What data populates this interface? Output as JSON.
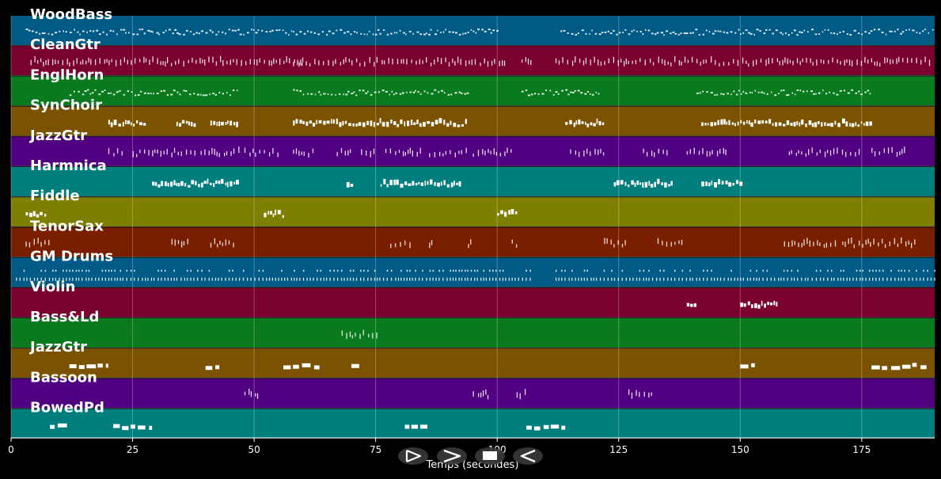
{
  "window": {
    "background": "#000000"
  },
  "chart_data": {
    "type": "piano-roll",
    "xlabel": "Temps (secondes)",
    "xlim": [
      0,
      190
    ],
    "x_ticks": [
      0,
      25,
      50,
      75,
      100,
      125,
      150,
      175
    ],
    "grid": true,
    "tracks": [
      {
        "name": "WoodBass",
        "color": "#005a86",
        "segments": [
          [
            3,
            47
          ],
          [
            47,
            100
          ],
          [
            113,
            190
          ]
        ],
        "style": "dots"
      },
      {
        "name": "CleanGtr",
        "color": "#7a0030",
        "segments": [
          [
            4,
            60
          ],
          [
            58,
            102
          ],
          [
            105,
            107
          ],
          [
            112,
            189
          ]
        ],
        "style": "ticks"
      },
      {
        "name": "EnglHorn",
        "color": "#0a7a1e",
        "segments": [
          [
            12,
            47
          ],
          [
            58,
            94
          ],
          [
            105,
            121
          ],
          [
            141,
            177
          ]
        ],
        "style": "dots"
      },
      {
        "name": "SynChoir",
        "color": "#7a5200",
        "segments": [
          [
            20,
            28
          ],
          [
            34,
            38
          ],
          [
            41,
            47
          ],
          [
            58,
            94
          ],
          [
            114,
            122
          ],
          [
            142,
            177
          ]
        ],
        "style": "bars"
      },
      {
        "name": "JazzGtr",
        "color": "#520082",
        "segments": [
          [
            20,
            23
          ],
          [
            25,
            38
          ],
          [
            39,
            47
          ],
          [
            48,
            55
          ],
          [
            58,
            62
          ],
          [
            67,
            70
          ],
          [
            72,
            75
          ],
          [
            77,
            85
          ],
          [
            86,
            94
          ],
          [
            95,
            103
          ],
          [
            115,
            122
          ],
          [
            130,
            135
          ],
          [
            139,
            147
          ],
          [
            160,
            175
          ],
          [
            177,
            184
          ]
        ],
        "style": "ticks"
      },
      {
        "name": "Harmnica",
        "color": "#007e7e",
        "segments": [
          [
            29,
            47
          ],
          [
            69,
            70
          ],
          [
            76,
            93
          ],
          [
            124,
            136
          ],
          [
            142,
            150
          ]
        ],
        "style": "bars"
      },
      {
        "name": "Fiddle",
        "color": "#7e7e00",
        "segments": [
          [
            3,
            7
          ],
          [
            52,
            56
          ],
          [
            100,
            104
          ]
        ],
        "style": "bars"
      },
      {
        "name": "TenorSax",
        "color": "#7a1e00",
        "segments": [
          [
            3,
            8
          ],
          [
            33,
            37
          ],
          [
            41,
            46
          ],
          [
            78,
            82
          ],
          [
            86,
            87
          ],
          [
            94,
            95
          ],
          [
            103,
            104
          ],
          [
            122,
            127
          ],
          [
            133,
            138
          ],
          [
            159,
            170
          ],
          [
            171,
            186
          ]
        ],
        "style": "ticks"
      },
      {
        "name": "GM Drums",
        "color": "#005a86",
        "segments": [
          [
            1,
            107
          ],
          [
            112,
            190
          ]
        ],
        "style": "drums"
      },
      {
        "name": "Violin",
        "color": "#7a0030",
        "segments": [
          [
            139,
            141
          ],
          [
            150,
            158
          ]
        ],
        "style": "bars"
      },
      {
        "name": "Bass&Ld",
        "color": "#0a7a1e",
        "segments": [
          [
            68,
            76
          ]
        ],
        "style": "ticks"
      },
      {
        "name": "JazzGtr",
        "color": "#7a5200",
        "segments": [
          [
            12,
            20
          ],
          [
            40,
            43
          ],
          [
            56,
            64
          ],
          [
            70,
            72
          ],
          [
            150,
            153
          ],
          [
            177,
            189
          ]
        ],
        "style": "blocks"
      },
      {
        "name": "Bassoon",
        "color": "#520082",
        "segments": [
          [
            48,
            51
          ],
          [
            95,
            98
          ],
          [
            104,
            106
          ],
          [
            127,
            132
          ]
        ],
        "style": "ticks"
      },
      {
        "name": "BowedPd",
        "color": "#007e7e",
        "segments": [
          [
            8,
            12
          ],
          [
            21,
            29
          ],
          [
            81,
            86
          ],
          [
            106,
            114
          ]
        ],
        "style": "blocks"
      }
    ]
  },
  "transport": {
    "buttons": [
      {
        "name": "play-button",
        "glyph": "play"
      },
      {
        "name": "forward-button",
        "glyph": "forward"
      },
      {
        "name": "stop-button",
        "glyph": "stop"
      },
      {
        "name": "rewind-button",
        "glyph": "rewind"
      }
    ]
  }
}
